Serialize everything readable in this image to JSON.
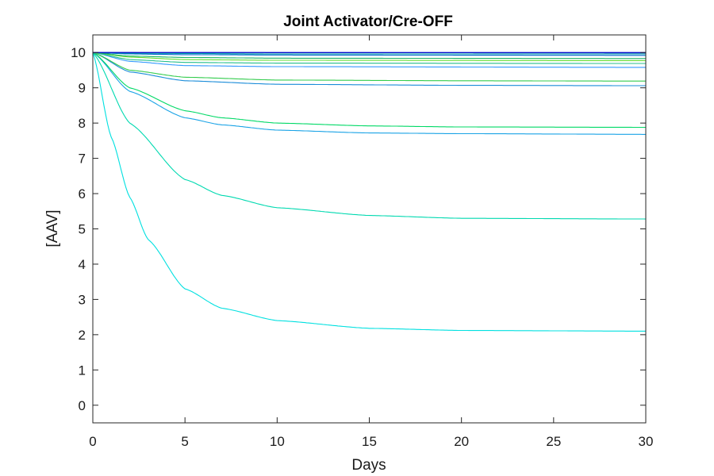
{
  "chart_data": {
    "type": "line",
    "title": "Joint Activator/Cre-OFF",
    "xlabel": "Days",
    "ylabel": "[AAV]",
    "xlim": [
      0,
      30
    ],
    "ylim": [
      -0.5,
      10.5
    ],
    "xticks": [
      0,
      5,
      10,
      15,
      20,
      25,
      30
    ],
    "yticks": [
      0,
      1,
      2,
      3,
      4,
      5,
      6,
      7,
      8,
      9,
      10
    ],
    "grid": false,
    "legend": "none",
    "initial_value": 10,
    "series": [
      {
        "color": "#00e0e0",
        "values_at": {
          "0": 10,
          "1": 7.6,
          "2": 5.9,
          "3": 4.7,
          "5": 3.3,
          "7": 2.75,
          "10": 2.4,
          "15": 2.18,
          "20": 2.12,
          "30": 2.1
        }
      },
      {
        "color": "#00d9b0",
        "values_at": {
          "0": 10,
          "2": 8.0,
          "5": 6.4,
          "7": 5.95,
          "10": 5.6,
          "15": 5.38,
          "20": 5.3,
          "30": 5.28
        }
      },
      {
        "color": "#1aa3e6",
        "values_at": {
          "0": 10,
          "2": 8.9,
          "5": 8.15,
          "7": 7.95,
          "10": 7.8,
          "15": 7.72,
          "20": 7.7,
          "30": 7.68
        }
      },
      {
        "color": "#00d966",
        "values_at": {
          "0": 10,
          "2": 9.0,
          "5": 8.35,
          "7": 8.15,
          "10": 8.0,
          "15": 7.92,
          "20": 7.89,
          "30": 7.88
        }
      },
      {
        "color": "#1a8cd9",
        "values_at": {
          "0": 10,
          "2": 9.45,
          "5": 9.2,
          "10": 9.1,
          "20": 9.07,
          "30": 9.06
        }
      },
      {
        "color": "#33cc4d",
        "values_at": {
          "0": 10,
          "2": 9.5,
          "5": 9.3,
          "10": 9.22,
          "20": 9.2,
          "30": 9.19
        }
      },
      {
        "color": "#3399ff",
        "values_at": {
          "0": 10,
          "2": 9.75,
          "5": 9.63,
          "10": 9.6,
          "30": 9.58
        }
      },
      {
        "color": "#26bf8c",
        "values_at": {
          "0": 10,
          "2": 9.8,
          "5": 9.72,
          "10": 9.7,
          "30": 9.69
        }
      },
      {
        "color": "#66dd33",
        "values_at": {
          "0": 10,
          "2": 9.87,
          "5": 9.8,
          "10": 9.78,
          "30": 9.77
        }
      },
      {
        "color": "#1ab366",
        "values_at": {
          "0": 10,
          "2": 9.9,
          "5": 9.86,
          "10": 9.84,
          "30": 9.83
        }
      },
      {
        "color": "#0066cc",
        "values_at": {
          "0": 10,
          "2": 9.96,
          "5": 9.94,
          "10": 9.93,
          "30": 9.92
        }
      },
      {
        "color": "#00a8a8",
        "values_at": {
          "0": 10,
          "2": 9.98,
          "10": 9.96,
          "30": 9.96
        }
      },
      {
        "color": "#0033cc",
        "values_at": {
          "0": 10,
          "30": 9.99
        }
      },
      {
        "color": "#0000cc",
        "values_at": {
          "0": 10,
          "30": 10.0
        }
      }
    ]
  }
}
